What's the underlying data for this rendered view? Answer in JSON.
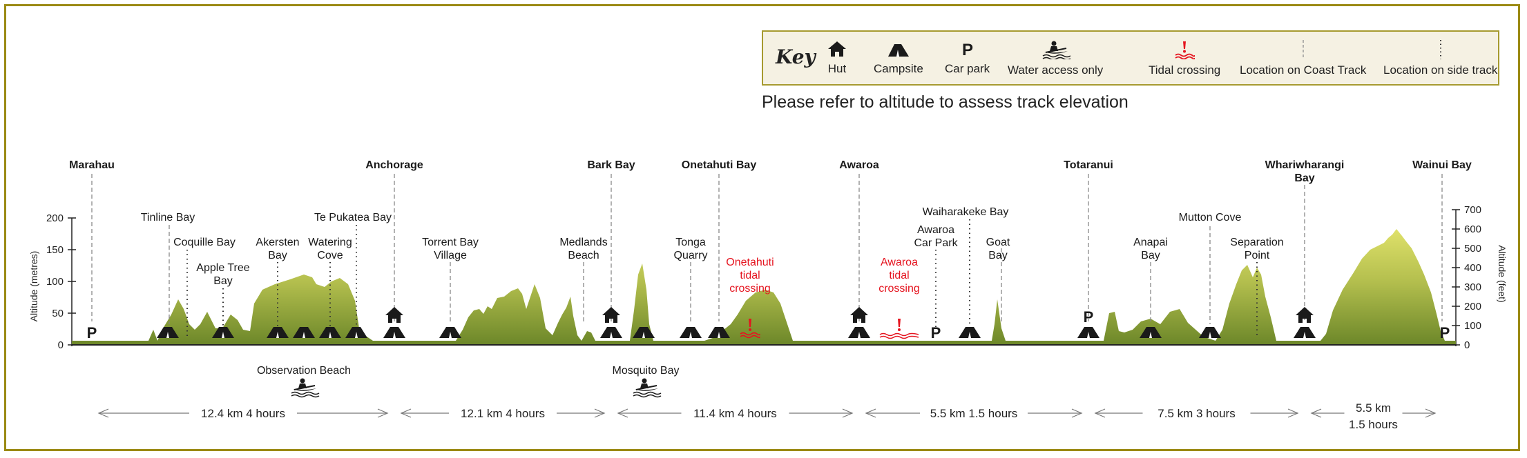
{
  "key": {
    "title": "Key",
    "items": [
      {
        "label": "Hut",
        "icon": "hut-icon"
      },
      {
        "label": "Campsite",
        "icon": "campsite-icon"
      },
      {
        "label": "Car park",
        "icon": "car-park-icon"
      },
      {
        "label": "Water access only",
        "icon": "kayak-icon"
      },
      {
        "label": "Tidal crossing",
        "icon": "tidal-crossing-icon"
      },
      {
        "label": "Location on Coast Track",
        "icon": "dashed-line-icon"
      },
      {
        "label": "Location on side track",
        "icon": "dotted-line-icon"
      }
    ]
  },
  "note": "Please refer to altitude to assess track elevation",
  "colors": {
    "terrain_top": "#d9dc5e",
    "terrain_bottom": "#6f8a2a",
    "tidal": "#e5141f",
    "frame": "#9b8a14"
  },
  "chart_data": {
    "type": "area",
    "y_left": {
      "label": "Altitude (metres)",
      "ticks": [
        0,
        50,
        100,
        150,
        200
      ],
      "range": [
        0,
        200
      ]
    },
    "y_right": {
      "label": "Altitude (feet)",
      "ticks": [
        0,
        100,
        200,
        300,
        400,
        500,
        600,
        700
      ],
      "range": [
        0,
        700
      ]
    },
    "main_stops": [
      {
        "name": "Marahau",
        "icons": [
          "car-park"
        ]
      },
      {
        "name": "Anchorage",
        "icons": [
          "hut",
          "campsite"
        ]
      },
      {
        "name": "Bark Bay",
        "icons": [
          "hut",
          "campsite"
        ]
      },
      {
        "name": "Onetahuti Bay",
        "icons": [
          "campsite"
        ]
      },
      {
        "name": "Awaroa",
        "icons": [
          "hut",
          "campsite"
        ]
      },
      {
        "name": "Totaranui",
        "icons": [
          "car-park",
          "campsite"
        ]
      },
      {
        "name": "Whariwharangi Bay",
        "icons": [
          "hut",
          "campsite"
        ]
      },
      {
        "name": "Wainui Bay",
        "icons": [
          "car-park"
        ]
      }
    ],
    "side_locations": [
      {
        "name": "Tinline Bay",
        "icons": [
          "campsite"
        ]
      },
      {
        "name": "Coquille Bay",
        "icons": []
      },
      {
        "name": "Apple Tree Bay",
        "icons": [
          "campsite"
        ]
      },
      {
        "name": "Akersten Bay",
        "icons": [
          "campsite"
        ]
      },
      {
        "name": "Watering Cove",
        "icons": [
          "campsite"
        ]
      },
      {
        "name": "Te Pukatea Bay",
        "icons": [
          "campsite"
        ]
      },
      {
        "name": "Torrent Bay Village",
        "icons": [
          "campsite"
        ]
      },
      {
        "name": "Medlands Beach",
        "icons": []
      },
      {
        "name": "Tonga Quarry",
        "icons": [
          "campsite"
        ]
      },
      {
        "name": "Awaroa Car Park",
        "icons": [
          "car-park"
        ]
      },
      {
        "name": "Waiharakeke Bay",
        "icons": [
          "campsite"
        ]
      },
      {
        "name": "Goat Bay",
        "icons": []
      },
      {
        "name": "Anapai Bay",
        "icons": [
          "campsite"
        ]
      },
      {
        "name": "Mutton Cove",
        "icons": [
          "campsite"
        ]
      },
      {
        "name": "Separation Point",
        "icons": []
      }
    ],
    "tidal_crossings": [
      "Onetahuti tidal crossing",
      "Awaroa tidal crossing"
    ],
    "water_access": [
      "Observation Beach",
      "Mosquito Bay"
    ],
    "segments": [
      {
        "distance": "12.4 km",
        "time": "4 hours"
      },
      {
        "distance": "12.1 km",
        "time": "4 hours"
      },
      {
        "distance": "11.4 km",
        "time": "4 hours"
      },
      {
        "distance": "5.5 km",
        "time": "1.5 hours"
      },
      {
        "distance": "7.5 km",
        "time": "3 hours"
      },
      {
        "distance": "5.5 km",
        "time": "1.5 hours"
      }
    ]
  }
}
